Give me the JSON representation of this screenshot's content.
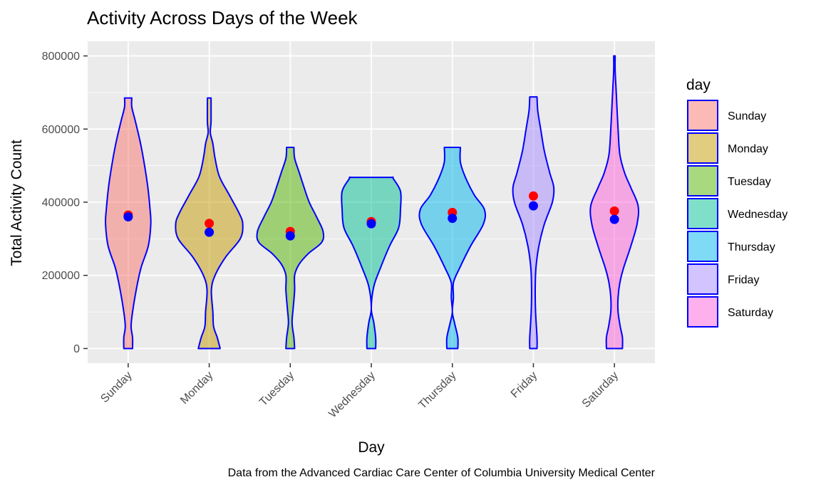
{
  "chart_data": {
    "type": "violin",
    "title": "Activity Across Days of the Week",
    "xlabel": "Day",
    "ylabel": "Total Activity Count",
    "caption": "Data from the Advanced Cardiac Care Center of Columbia University Medical Center",
    "ylim": [
      -40000,
      840000
    ],
    "yticks": [
      0,
      200000,
      400000,
      600000,
      800000
    ],
    "ytick_labels": [
      "0",
      "200000",
      "400000",
      "600000",
      "800000"
    ],
    "grid": true,
    "legend": {
      "title": "day",
      "placement": "right"
    },
    "outline_color": "#0000ff",
    "mean_color": "#ff0000",
    "median_color": "#0000ff",
    "categories": [
      "Sunday",
      "Monday",
      "Tuesday",
      "Wednesday",
      "Thursday",
      "Friday",
      "Saturday"
    ],
    "fill_colors": [
      "#f8766d",
      "#c49a00",
      "#53b400",
      "#00c094",
      "#00b6eb",
      "#a58aff",
      "#fb61d7"
    ],
    "means": [
      365000,
      342000,
      320000,
      347000,
      372000,
      417000,
      376000
    ],
    "medians": [
      360000,
      318000,
      308000,
      341000,
      356000,
      390000,
      353000
    ],
    "violins": [
      {
        "day": "Sunday",
        "profile": [
          [
            0,
            0.12
          ],
          [
            30000,
            0.12
          ],
          [
            60000,
            0.08
          ],
          [
            100000,
            0.12
          ],
          [
            160000,
            0.22
          ],
          [
            220000,
            0.35
          ],
          [
            280000,
            0.55
          ],
          [
            340000,
            0.62
          ],
          [
            380000,
            0.6
          ],
          [
            440000,
            0.54
          ],
          [
            500000,
            0.45
          ],
          [
            560000,
            0.34
          ],
          [
            620000,
            0.2
          ],
          [
            660000,
            0.1
          ],
          [
            685000,
            0.1
          ]
        ]
      },
      {
        "day": "Monday",
        "profile": [
          [
            0,
            0.3
          ],
          [
            30000,
            0.22
          ],
          [
            60000,
            0.12
          ],
          [
            100000,
            0.1
          ],
          [
            160000,
            0.06
          ],
          [
            200000,
            0.16
          ],
          [
            250000,
            0.45
          ],
          [
            300000,
            0.85
          ],
          [
            340000,
            0.92
          ],
          [
            370000,
            0.82
          ],
          [
            420000,
            0.55
          ],
          [
            470000,
            0.28
          ],
          [
            520000,
            0.16
          ],
          [
            560000,
            0.1
          ],
          [
            590000,
            0.03
          ],
          [
            620000,
            0.05
          ],
          [
            685000,
            0.05
          ]
        ]
      },
      {
        "day": "Tuesday",
        "profile": [
          [
            0,
            0.12
          ],
          [
            30000,
            0.1
          ],
          [
            70000,
            0.05
          ],
          [
            110000,
            0.08
          ],
          [
            160000,
            0.12
          ],
          [
            200000,
            0.12
          ],
          [
            230000,
            0.24
          ],
          [
            260000,
            0.5
          ],
          [
            290000,
            0.86
          ],
          [
            320000,
            0.9
          ],
          [
            360000,
            0.72
          ],
          [
            400000,
            0.52
          ],
          [
            440000,
            0.38
          ],
          [
            480000,
            0.25
          ],
          [
            520000,
            0.12
          ],
          [
            550000,
            0.1
          ]
        ]
      },
      {
        "day": "Wednesday",
        "profile": [
          [
            0,
            0.12
          ],
          [
            30000,
            0.12
          ],
          [
            70000,
            0.07
          ],
          [
            110000,
            0.0
          ],
          [
            170000,
            0.07
          ],
          [
            220000,
            0.25
          ],
          [
            280000,
            0.5
          ],
          [
            330000,
            0.75
          ],
          [
            380000,
            0.8
          ],
          [
            430000,
            0.8
          ],
          [
            465000,
            0.6
          ],
          [
            468000,
            0.6
          ]
        ]
      },
      {
        "day": "Thursday",
        "profile": [
          [
            0,
            0.15
          ],
          [
            30000,
            0.15
          ],
          [
            70000,
            0.06
          ],
          [
            100000,
            0.0
          ],
          [
            140000,
            0.03
          ],
          [
            180000,
            0.03
          ],
          [
            220000,
            0.2
          ],
          [
            280000,
            0.5
          ],
          [
            340000,
            0.85
          ],
          [
            380000,
            0.88
          ],
          [
            420000,
            0.6
          ],
          [
            470000,
            0.35
          ],
          [
            510000,
            0.22
          ],
          [
            550000,
            0.22
          ]
        ]
      },
      {
        "day": "Friday",
        "profile": [
          [
            0,
            0.1
          ],
          [
            30000,
            0.1
          ],
          [
            100000,
            0.06
          ],
          [
            160000,
            0.05
          ],
          [
            220000,
            0.07
          ],
          [
            280000,
            0.15
          ],
          [
            340000,
            0.3
          ],
          [
            400000,
            0.52
          ],
          [
            440000,
            0.56
          ],
          [
            480000,
            0.45
          ],
          [
            540000,
            0.3
          ],
          [
            600000,
            0.2
          ],
          [
            650000,
            0.12
          ],
          [
            688000,
            0.1
          ]
        ]
      },
      {
        "day": "Saturday",
        "profile": [
          [
            0,
            0.22
          ],
          [
            30000,
            0.22
          ],
          [
            60000,
            0.16
          ],
          [
            100000,
            0.1
          ],
          [
            140000,
            0.1
          ],
          [
            180000,
            0.15
          ],
          [
            220000,
            0.25
          ],
          [
            280000,
            0.45
          ],
          [
            340000,
            0.62
          ],
          [
            390000,
            0.65
          ],
          [
            440000,
            0.45
          ],
          [
            480000,
            0.28
          ],
          [
            530000,
            0.15
          ],
          [
            600000,
            0.1
          ],
          [
            700000,
            0.05
          ],
          [
            760000,
            0.02
          ],
          [
            800000,
            0.02
          ]
        ]
      }
    ]
  }
}
